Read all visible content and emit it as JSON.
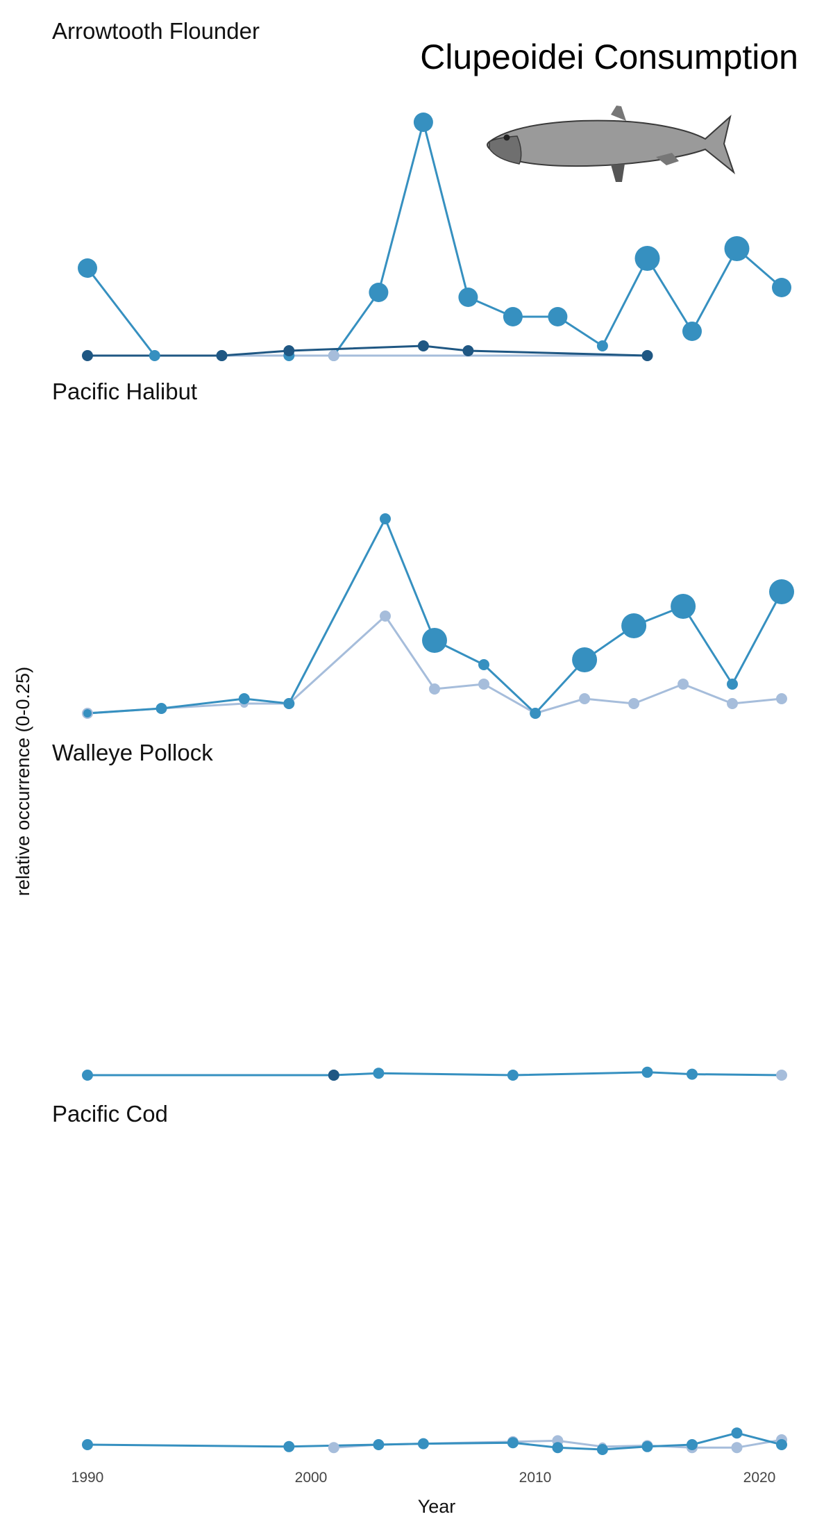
{
  "chart_data": {
    "type": "line",
    "title": "Clupeoidei Consumption",
    "xlabel": "Year",
    "ylabel": "relative occurrence (0-0.25)",
    "x_ticks": [
      "1990",
      "2000",
      "2010",
      "2020"
    ],
    "xlim": [
      1990,
      2021
    ],
    "ylim": [
      0,
      0.25
    ],
    "grid": false,
    "legend": "none",
    "series_colors": [
      "#1f5783",
      "#3690c0",
      "#a6bddb"
    ],
    "panels": [
      {
        "name": "Arrowtooth Flounder",
        "series": [
          {
            "color": "#3690c0",
            "points": [
              {
                "x": 1990,
                "y": 0.09,
                "s": 14
              },
              {
                "x": 1993,
                "y": 0.0,
                "s": 8
              },
              {
                "x": 1996,
                "y": 0.0,
                "s": 8
              },
              {
                "x": 1999,
                "y": 0.0,
                "s": 8
              },
              {
                "x": 2001,
                "y": 0.0,
                "s": 8
              },
              {
                "x": 2003,
                "y": 0.065,
                "s": 14
              },
              {
                "x": 2005,
                "y": 0.24,
                "s": 14
              },
              {
                "x": 2007,
                "y": 0.06,
                "s": 14
              },
              {
                "x": 2009,
                "y": 0.04,
                "s": 14
              },
              {
                "x": 2011,
                "y": 0.04,
                "s": 14
              },
              {
                "x": 2013,
                "y": 0.01,
                "s": 8
              },
              {
                "x": 2015,
                "y": 0.1,
                "s": 18
              },
              {
                "x": 2017,
                "y": 0.025,
                "s": 14
              },
              {
                "x": 2019,
                "y": 0.11,
                "s": 18
              },
              {
                "x": 2021,
                "y": 0.07,
                "s": 14
              }
            ]
          },
          {
            "color": "#a6bddb",
            "points": [
              {
                "x": 1990,
                "y": 0.0,
                "s": 6
              },
              {
                "x": 2001,
                "y": 0.0,
                "s": 8
              },
              {
                "x": 2015,
                "y": 0.0,
                "s": 8
              }
            ]
          },
          {
            "color": "#1f5783",
            "points": [
              {
                "x": 1990,
                "y": 0.0,
                "s": 8
              },
              {
                "x": 1996,
                "y": 0.0,
                "s": 8
              },
              {
                "x": 1999,
                "y": 0.005,
                "s": 8
              },
              {
                "x": 2005,
                "y": 0.01,
                "s": 8
              },
              {
                "x": 2007,
                "y": 0.005,
                "s": 8
              },
              {
                "x": 2015,
                "y": 0.0,
                "s": 8
              }
            ]
          }
        ]
      },
      {
        "name": "Pacific Halibut",
        "series": [
          {
            "color": "#a6bddb",
            "points": [
              {
                "x": 1990,
                "y": 0.0,
                "s": 8
              },
              {
                "x": 1993.3,
                "y": 0.005,
                "s": 6
              },
              {
                "x": 1997,
                "y": 0.01,
                "s": 6
              },
              {
                "x": 1999,
                "y": 0.01,
                "s": 8
              },
              {
                "x": 2003.3,
                "y": 0.1,
                "s": 8
              },
              {
                "x": 2005.5,
                "y": 0.025,
                "s": 8
              },
              {
                "x": 2007.7,
                "y": 0.03,
                "s": 8
              },
              {
                "x": 2010,
                "y": 0.0,
                "s": 8
              },
              {
                "x": 2012.2,
                "y": 0.015,
                "s": 8
              },
              {
                "x": 2014.4,
                "y": 0.01,
                "s": 8
              },
              {
                "x": 2016.6,
                "y": 0.03,
                "s": 8
              },
              {
                "x": 2018.8,
                "y": 0.01,
                "s": 8
              },
              {
                "x": 2021,
                "y": 0.015,
                "s": 8
              }
            ]
          },
          {
            "color": "#3690c0",
            "points": [
              {
                "x": 1990,
                "y": 0.0,
                "s": 6
              },
              {
                "x": 1993.3,
                "y": 0.005,
                "s": 8
              },
              {
                "x": 1997,
                "y": 0.015,
                "s": 8
              },
              {
                "x": 1999,
                "y": 0.01,
                "s": 8
              },
              {
                "x": 2003.3,
                "y": 0.2,
                "s": 8
              },
              {
                "x": 2005.5,
                "y": 0.075,
                "s": 18
              },
              {
                "x": 2007.7,
                "y": 0.05,
                "s": 8
              },
              {
                "x": 2010,
                "y": 0.0,
                "s": 8
              },
              {
                "x": 2012.2,
                "y": 0.055,
                "s": 18
              },
              {
                "x": 2014.4,
                "y": 0.09,
                "s": 18
              },
              {
                "x": 2016.6,
                "y": 0.11,
                "s": 18
              },
              {
                "x": 2018.8,
                "y": 0.03,
                "s": 8
              },
              {
                "x": 2021,
                "y": 0.125,
                "s": 18
              }
            ]
          }
        ]
      },
      {
        "name": "Walleye Pollock",
        "series": [
          {
            "color": "#3690c0",
            "points": [
              {
                "x": 1990,
                "y": 0.0,
                "s": 8
              },
              {
                "x": 2001,
                "y": 0.0,
                "s": 8
              },
              {
                "x": 2003,
                "y": 0.002,
                "s": 8
              },
              {
                "x": 2009,
                "y": 0.0,
                "s": 8
              },
              {
                "x": 2015,
                "y": 0.003,
                "s": 8
              },
              {
                "x": 2017,
                "y": 0.001,
                "s": 8
              },
              {
                "x": 2021,
                "y": 0.0,
                "s": 6
              }
            ]
          },
          {
            "color": "#1f5783",
            "points": [
              {
                "x": 2001,
                "y": 0.0,
                "s": 8
              }
            ]
          },
          {
            "color": "#a6bddb",
            "points": [
              {
                "x": 2021,
                "y": 0.0,
                "s": 8
              }
            ]
          }
        ]
      },
      {
        "name": "Pacific Cod",
        "series": [
          {
            "color": "#a6bddb",
            "points": [
              {
                "x": 2001,
                "y": -0.003,
                "s": 8
              },
              {
                "x": 2003,
                "y": 0.0,
                "s": 6
              },
              {
                "x": 2005,
                "y": 0.001,
                "s": 6
              },
              {
                "x": 2009,
                "y": 0.003,
                "s": 8
              },
              {
                "x": 2011,
                "y": 0.004,
                "s": 8
              },
              {
                "x": 2013,
                "y": -0.002,
                "s": 6
              },
              {
                "x": 2015,
                "y": -0.001,
                "s": 8
              },
              {
                "x": 2017,
                "y": -0.003,
                "s": 8
              },
              {
                "x": 2019,
                "y": -0.003,
                "s": 8
              },
              {
                "x": 2021,
                "y": 0.005,
                "s": 8
              }
            ]
          },
          {
            "color": "#3690c0",
            "points": [
              {
                "x": 1990,
                "y": 0.0,
                "s": 8
              },
              {
                "x": 1999,
                "y": -0.002,
                "s": 8
              },
              {
                "x": 2003,
                "y": 0.0,
                "s": 8
              },
              {
                "x": 2005,
                "y": 0.001,
                "s": 8
              },
              {
                "x": 2009,
                "y": 0.002,
                "s": 8
              },
              {
                "x": 2011,
                "y": -0.003,
                "s": 8
              },
              {
                "x": 2013,
                "y": -0.005,
                "s": 8
              },
              {
                "x": 2015,
                "y": -0.002,
                "s": 8
              },
              {
                "x": 2017,
                "y": 0.0,
                "s": 8
              },
              {
                "x": 2019,
                "y": 0.012,
                "s": 8
              },
              {
                "x": 2021,
                "y": 0.0,
                "s": 8
              }
            ]
          }
        ]
      }
    ]
  }
}
